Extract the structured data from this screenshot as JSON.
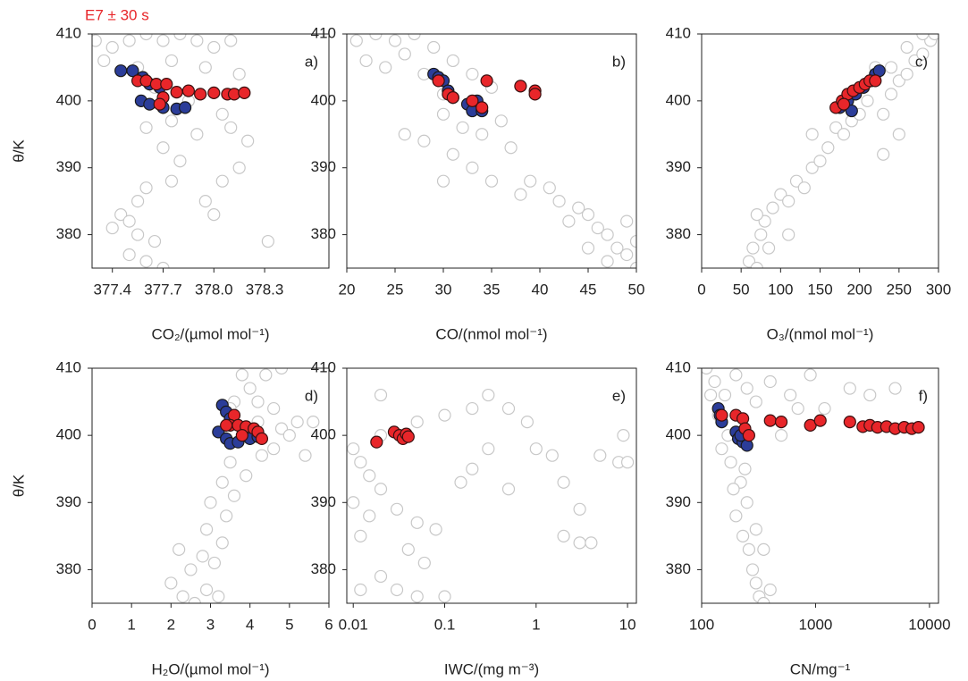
{
  "chart_data": [
    {
      "type": "scatter",
      "title": "E7 ± 30 s",
      "title_color": "#e8262a",
      "panel_label": "a)",
      "xlabel": "CO₂/(µmol mol⁻¹)",
      "ylabel": "θ/K",
      "xlim": [
        377.28,
        378.68
      ],
      "xticks": [
        377.4,
        377.7,
        {
          "value": 378,
          "label": "378.0"
        },
        378.3
      ],
      "ylim": [
        375,
        410
      ],
      "yticks": [
        380,
        390,
        400,
        410
      ],
      "series": [
        {
          "fill": "#ffffff",
          "edge": "#c8c8c8",
          "x": [
            377.3,
            377.4,
            377.5,
            377.6,
            377.7,
            377.8,
            377.9,
            378.0,
            378.1,
            377.35,
            377.55,
            377.75,
            377.95,
            378.15,
            377.65,
            377.85,
            378.05,
            377.75,
            377.6,
            377.9,
            378.1,
            378.2,
            377.7,
            378.15,
            378.05,
            377.8,
            377.75,
            377.6,
            377.55,
            377.45,
            377.4,
            377.55,
            377.65,
            377.5,
            377.6,
            377.7,
            377.95,
            378.0,
            377.5,
            378.32
          ],
          "y": [
            409,
            408,
            409,
            410,
            409,
            410,
            409,
            408,
            409,
            406,
            405,
            406,
            405,
            404,
            402,
            400,
            398,
            397,
            396,
            395,
            396,
            394,
            393,
            390,
            388,
            391,
            388,
            387,
            385,
            383,
            381,
            380,
            379,
            377,
            376,
            375,
            385,
            383,
            382,
            379
          ]
        },
        {
          "fill": "#2b3d99",
          "edge": "#1a1a1a",
          "x": [
            377.45,
            377.52,
            377.58,
            377.62,
            377.68,
            377.57,
            377.62,
            377.7,
            377.78,
            377.83
          ],
          "y": [
            404.5,
            404.5,
            403.5,
            402.5,
            402,
            400,
            399.5,
            399,
            398.8,
            399
          ]
        },
        {
          "fill": "#e8262a",
          "edge": "#3a1010",
          "x": [
            377.55,
            377.6,
            377.66,
            377.72,
            377.7,
            377.68,
            377.78,
            377.85,
            377.92,
            378.0,
            378.08,
            378.12,
            378.18
          ],
          "y": [
            403,
            403,
            402.5,
            402.5,
            400.5,
            399.5,
            401.3,
            401.5,
            401,
            401.2,
            401,
            401,
            401.2
          ]
        }
      ]
    },
    {
      "type": "scatter",
      "panel_label": "b)",
      "xlabel": "CO/(nmol mol⁻¹)",
      "xlim": [
        20,
        50
      ],
      "xticks": [
        20,
        25,
        30,
        35,
        40,
        45,
        50
      ],
      "ylim": [
        375,
        410
      ],
      "yticks": [
        380,
        390,
        400,
        410
      ],
      "series": [
        {
          "fill": "#ffffff",
          "edge": "#c8c8c8",
          "x": [
            21,
            23,
            25,
            27,
            29,
            22,
            24,
            26,
            28,
            31,
            33,
            35,
            30,
            26,
            28,
            30,
            32,
            34,
            31,
            33,
            35,
            30,
            36,
            37,
            39,
            38,
            41,
            42,
            44,
            45,
            46,
            47,
            48,
            49,
            50,
            47,
            45,
            43,
            49,
            50
          ],
          "y": [
            409,
            410,
            409,
            410,
            408,
            406,
            405,
            407,
            404,
            406,
            404,
            402,
            401,
            395,
            394,
            398,
            396,
            395,
            392,
            390,
            388,
            388,
            397,
            393,
            388,
            386,
            387,
            385,
            384,
            383,
            381,
            380,
            378,
            377,
            375,
            376,
            378,
            382,
            382,
            379
          ]
        },
        {
          "fill": "#2b3d99",
          "edge": "#1a1a1a",
          "x": [
            29,
            29.5,
            30,
            30.5,
            31,
            32.5,
            33,
            34,
            33.5
          ],
          "y": [
            404,
            403.5,
            403,
            401.5,
            400.5,
            399.5,
            398.5,
            398.5,
            400
          ]
        },
        {
          "fill": "#e8262a",
          "edge": "#3a1010",
          "x": [
            29.5,
            30.5,
            31,
            33,
            34,
            34.5,
            38,
            39.5,
            39.5
          ],
          "y": [
            403,
            401,
            400.5,
            400,
            399,
            403,
            402.2,
            401.5,
            401
          ]
        }
      ]
    },
    {
      "type": "scatter",
      "panel_label": "c)",
      "xlabel": "O₃/(nmol mol⁻¹)",
      "xlim": [
        0,
        300
      ],
      "xticks": [
        0,
        50,
        100,
        150,
        200,
        250,
        300
      ],
      "ylim": [
        375,
        410
      ],
      "yticks": [
        380,
        390,
        400,
        410
      ],
      "series": [
        {
          "fill": "#ffffff",
          "edge": "#c8c8c8",
          "x": [
            60,
            65,
            70,
            75,
            80,
            70,
            90,
            100,
            110,
            120,
            130,
            140,
            150,
            160,
            140,
            170,
            180,
            190,
            200,
            210,
            230,
            240,
            250,
            260,
            240,
            270,
            280,
            260,
            290,
            295,
            250,
            230,
            280,
            220,
            110,
            85
          ],
          "y": [
            376,
            378,
            375,
            380,
            382,
            383,
            384,
            386,
            385,
            388,
            387,
            390,
            391,
            393,
            395,
            396,
            395,
            397,
            398,
            400,
            398,
            401,
            403,
            404,
            405,
            406,
            407,
            408,
            409,
            410,
            395,
            392,
            410,
            405,
            380,
            378
          ]
        },
        {
          "fill": "#2b3d99",
          "edge": "#1a1a1a",
          "x": [
            175,
            185,
            195,
            205,
            215,
            220,
            225,
            190
          ],
          "y": [
            399,
            400,
            401,
            402,
            403,
            404,
            404.5,
            398.5
          ]
        },
        {
          "fill": "#e8262a",
          "edge": "#3a1010",
          "x": [
            170,
            178,
            185,
            192,
            200,
            207,
            213,
            220,
            180
          ],
          "y": [
            399,
            400,
            401,
            401.5,
            402,
            402.5,
            403,
            403,
            399.5
          ]
        }
      ]
    },
    {
      "type": "scatter",
      "panel_label": "d)",
      "xlabel": "H₂O/(µmol mol⁻¹)",
      "ylabel": "θ/K",
      "xlim": [
        0,
        6
      ],
      "xticks": [
        0,
        1,
        2,
        3,
        4,
        5,
        6
      ],
      "ylim": [
        375,
        410
      ],
      "yticks": [
        380,
        390,
        400,
        410
      ],
      "series": [
        {
          "fill": "#ffffff",
          "edge": "#c8c8c8",
          "x": [
            2.0,
            2.3,
            2.6,
            2.9,
            3.2,
            2.5,
            2.8,
            3.1,
            2.2,
            3.3,
            2.9,
            3.4,
            3.0,
            3.6,
            3.3,
            3.9,
            3.5,
            4.3,
            4.6,
            4.2,
            4.8,
            5.2,
            5.6,
            5.4,
            3.6,
            4.0,
            4.4,
            4.8,
            4.2,
            4.6,
            5.0,
            3.9,
            3.5,
            3.8
          ],
          "y": [
            378,
            376,
            375,
            377,
            376,
            380,
            382,
            381,
            383,
            384,
            386,
            388,
            390,
            391,
            393,
            394,
            396,
            397,
            398,
            402,
            401,
            402,
            402,
            397,
            405,
            407,
            409,
            410,
            405,
            404,
            400,
            400,
            404,
            409
          ]
        },
        {
          "fill": "#2b3d99",
          "edge": "#1a1a1a",
          "x": [
            3.3,
            3.4,
            3.5,
            3.2,
            3.4,
            3.5,
            3.7,
            4.0,
            4.2
          ],
          "y": [
            404.5,
            403.5,
            402.5,
            400.5,
            399.5,
            398.8,
            399,
            399.5,
            399.8
          ]
        },
        {
          "fill": "#e8262a",
          "edge": "#3a1010",
          "x": [
            3.6,
            3.5,
            3.7,
            3.9,
            4.1,
            4.2,
            3.8,
            4.3,
            3.4
          ],
          "y": [
            403,
            401.5,
            401.5,
            401.3,
            401,
            400.5,
            400,
            399.5,
            401.5
          ]
        }
      ]
    },
    {
      "type": "scatter",
      "panel_label": "e)",
      "xlabel": "IWC/(mg m⁻³)",
      "xscale": "log",
      "xlim": [
        0.0085,
        12.5
      ],
      "xticks": [
        0.01,
        0.1,
        1,
        10
      ],
      "ylim": [
        375,
        410
      ],
      "yticks": [
        380,
        390,
        400,
        410
      ],
      "series": [
        {
          "fill": "#ffffff",
          "edge": "#c8c8c8",
          "x": [
            0.01,
            0.012,
            0.015,
            0.02,
            0.01,
            0.015,
            0.012,
            0.03,
            0.05,
            0.08,
            0.04,
            0.06,
            0.02,
            0.03,
            0.05,
            0.1,
            0.012,
            0.02,
            0.05,
            0.1,
            0.2,
            0.3,
            0.5,
            0.8,
            1,
            1.5,
            2,
            3,
            2,
            3,
            4,
            0.5,
            0.3,
            0.2,
            0.15,
            5,
            8,
            9,
            10,
            0.02
          ],
          "y": [
            398,
            396,
            394,
            392,
            390,
            388,
            385,
            389,
            387,
            386,
            383,
            381,
            379,
            377,
            376,
            376,
            377,
            400,
            402,
            403,
            404,
            406,
            404,
            402,
            398,
            397,
            393,
            389,
            385,
            384,
            384,
            392,
            398,
            395,
            393,
            397,
            396,
            400,
            396,
            406
          ]
        },
        {
          "fill": "#e8262a",
          "edge": "#3a1010",
          "x": [
            0.018,
            0.028,
            0.032,
            0.035,
            0.038,
            0.04
          ],
          "y": [
            399,
            400.5,
            400,
            399.5,
            400.2,
            399.8
          ]
        }
      ]
    },
    {
      "type": "scatter",
      "panel_label": "f)",
      "xlabel": "CN/mg⁻¹",
      "xscale": "log",
      "xlim": [
        100,
        12000
      ],
      "xticks": [
        100,
        1000,
        10000
      ],
      "ylim": [
        375,
        410
      ],
      "yticks": [
        380,
        390,
        400,
        410
      ],
      "series": [
        {
          "fill": "#ffffff",
          "edge": "#c8c8c8",
          "x": [
            110,
            130,
            160,
            200,
            250,
            300,
            400,
            600,
            900,
            1200,
            2000,
            3000,
            5000,
            180,
            220,
            250,
            200,
            230,
            260,
            280,
            300,
            320,
            350,
            400,
            300,
            350,
            150,
            190,
            240,
            500,
            700,
            140,
            120,
            170
          ],
          "y": [
            410,
            408,
            406,
            409,
            407,
            405,
            408,
            406,
            409,
            404,
            407,
            406,
            407,
            396,
            393,
            390,
            388,
            385,
            383,
            380,
            378,
            376,
            375,
            377,
            386,
            383,
            398,
            392,
            395,
            400,
            404,
            403,
            406,
            400
          ]
        },
        {
          "fill": "#2b3d99",
          "edge": "#1a1a1a",
          "x": [
            140,
            145,
            150,
            200,
            210,
            230,
            250,
            220
          ],
          "y": [
            404,
            403,
            402,
            400.5,
            399.5,
            399,
            398.5,
            400
          ]
        },
        {
          "fill": "#e8262a",
          "edge": "#3a1010",
          "x": [
            150,
            200,
            230,
            240,
            260,
            400,
            500,
            900,
            1100,
            2000,
            2600,
            3000,
            3500,
            4200,
            5000,
            6000,
            7000,
            8000
          ],
          "y": [
            403,
            403,
            402.5,
            401,
            400,
            402.2,
            402,
            401.5,
            402.2,
            402,
            401.3,
            401.5,
            401.2,
            401.3,
            401,
            401.2,
            401,
            401.2
          ]
        }
      ]
    }
  ]
}
